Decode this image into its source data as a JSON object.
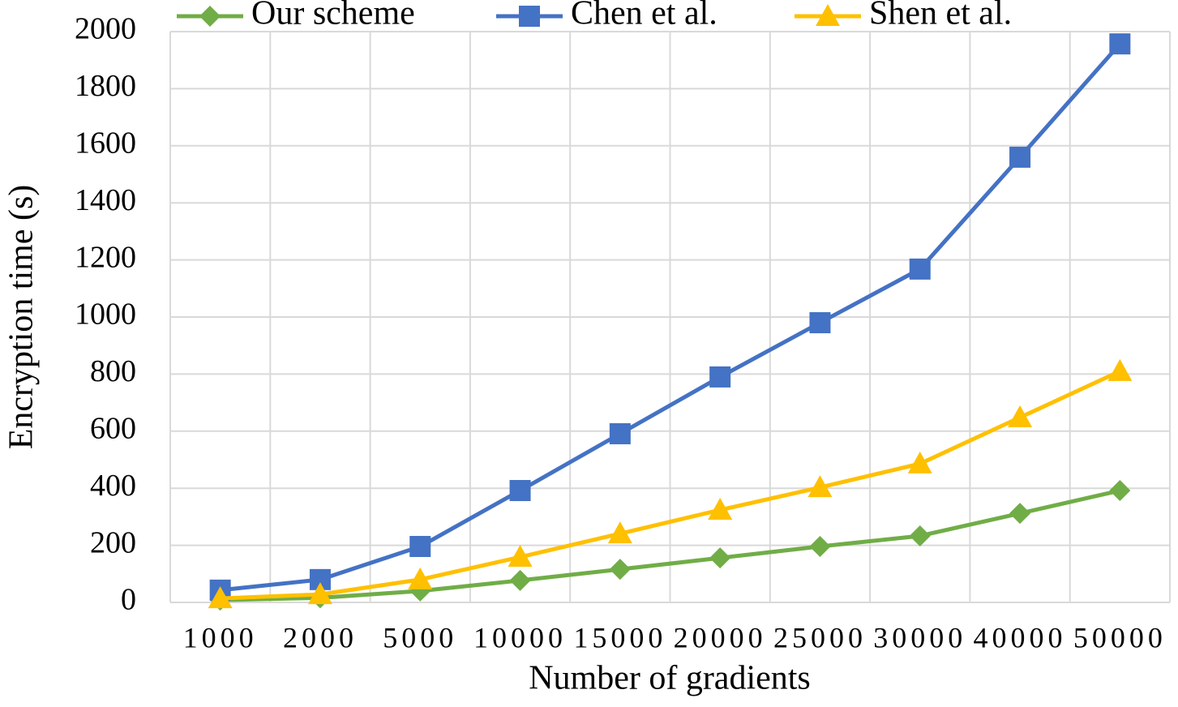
{
  "chart_data": {
    "type": "line",
    "x_label": "Number of gradients",
    "y_label": "Encryption time (s)",
    "categories": [
      "1000",
      "2000",
      "5000",
      "10000",
      "15000",
      "20000",
      "25000",
      "30000",
      "40000",
      "50000"
    ],
    "series": [
      {
        "name": "Our scheme",
        "color": "#70ad47",
        "marker": "diamond",
        "values": [
          8,
          16,
          40,
          77,
          116,
          156,
          196,
          233,
          312,
          392
        ]
      },
      {
        "name": "Chen et al.",
        "color": "#4472c4",
        "marker": "square",
        "values": [
          43,
          80,
          196,
          392,
          591,
          790,
          980,
          1168,
          1560,
          1957
        ]
      },
      {
        "name": "Shen et al.",
        "color": "#ffc000",
        "marker": "triangle",
        "values": [
          14,
          28,
          80,
          159,
          241,
          324,
          403,
          486,
          648,
          810
        ]
      }
    ],
    "ylim": [
      0,
      2000
    ],
    "yticks": [
      0,
      200,
      400,
      600,
      800,
      1000,
      1200,
      1400,
      1600,
      1800,
      2000
    ],
    "grid": true,
    "legend": "top"
  }
}
